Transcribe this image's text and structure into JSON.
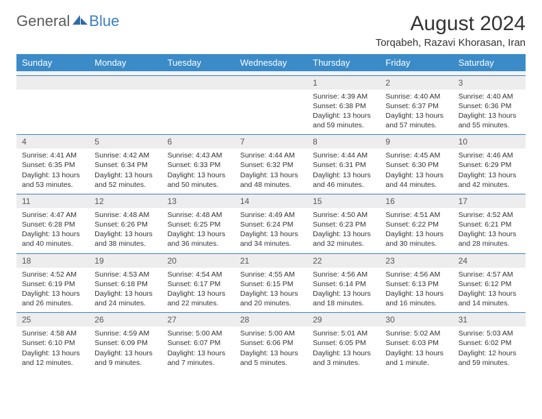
{
  "logo": {
    "general": "General",
    "blue": "Blue"
  },
  "title": "August 2024",
  "location": "Torqabeh, Razavi Khorasan, Iran",
  "colors": {
    "header_bg": "#3b8bc9",
    "header_text": "#ffffff",
    "daterow_bg": "#ededed",
    "border": "#3b7fc4",
    "logo_gray": "#5a5a5a",
    "logo_blue": "#3b7fc4"
  },
  "day_headers": [
    "Sunday",
    "Monday",
    "Tuesday",
    "Wednesday",
    "Thursday",
    "Friday",
    "Saturday"
  ],
  "weeks": [
    {
      "dates": [
        "",
        "",
        "",
        "",
        "1",
        "2",
        "3"
      ],
      "info": [
        "",
        "",
        "",
        "",
        "Sunrise: 4:39 AM\nSunset: 6:38 PM\nDaylight: 13 hours and 59 minutes.",
        "Sunrise: 4:40 AM\nSunset: 6:37 PM\nDaylight: 13 hours and 57 minutes.",
        "Sunrise: 4:40 AM\nSunset: 6:36 PM\nDaylight: 13 hours and 55 minutes."
      ]
    },
    {
      "dates": [
        "4",
        "5",
        "6",
        "7",
        "8",
        "9",
        "10"
      ],
      "info": [
        "Sunrise: 4:41 AM\nSunset: 6:35 PM\nDaylight: 13 hours and 53 minutes.",
        "Sunrise: 4:42 AM\nSunset: 6:34 PM\nDaylight: 13 hours and 52 minutes.",
        "Sunrise: 4:43 AM\nSunset: 6:33 PM\nDaylight: 13 hours and 50 minutes.",
        "Sunrise: 4:44 AM\nSunset: 6:32 PM\nDaylight: 13 hours and 48 minutes.",
        "Sunrise: 4:44 AM\nSunset: 6:31 PM\nDaylight: 13 hours and 46 minutes.",
        "Sunrise: 4:45 AM\nSunset: 6:30 PM\nDaylight: 13 hours and 44 minutes.",
        "Sunrise: 4:46 AM\nSunset: 6:29 PM\nDaylight: 13 hours and 42 minutes."
      ]
    },
    {
      "dates": [
        "11",
        "12",
        "13",
        "14",
        "15",
        "16",
        "17"
      ],
      "info": [
        "Sunrise: 4:47 AM\nSunset: 6:28 PM\nDaylight: 13 hours and 40 minutes.",
        "Sunrise: 4:48 AM\nSunset: 6:26 PM\nDaylight: 13 hours and 38 minutes.",
        "Sunrise: 4:48 AM\nSunset: 6:25 PM\nDaylight: 13 hours and 36 minutes.",
        "Sunrise: 4:49 AM\nSunset: 6:24 PM\nDaylight: 13 hours and 34 minutes.",
        "Sunrise: 4:50 AM\nSunset: 6:23 PM\nDaylight: 13 hours and 32 minutes.",
        "Sunrise: 4:51 AM\nSunset: 6:22 PM\nDaylight: 13 hours and 30 minutes.",
        "Sunrise: 4:52 AM\nSunset: 6:21 PM\nDaylight: 13 hours and 28 minutes."
      ]
    },
    {
      "dates": [
        "18",
        "19",
        "20",
        "21",
        "22",
        "23",
        "24"
      ],
      "info": [
        "Sunrise: 4:52 AM\nSunset: 6:19 PM\nDaylight: 13 hours and 26 minutes.",
        "Sunrise: 4:53 AM\nSunset: 6:18 PM\nDaylight: 13 hours and 24 minutes.",
        "Sunrise: 4:54 AM\nSunset: 6:17 PM\nDaylight: 13 hours and 22 minutes.",
        "Sunrise: 4:55 AM\nSunset: 6:15 PM\nDaylight: 13 hours and 20 minutes.",
        "Sunrise: 4:56 AM\nSunset: 6:14 PM\nDaylight: 13 hours and 18 minutes.",
        "Sunrise: 4:56 AM\nSunset: 6:13 PM\nDaylight: 13 hours and 16 minutes.",
        "Sunrise: 4:57 AM\nSunset: 6:12 PM\nDaylight: 13 hours and 14 minutes."
      ]
    },
    {
      "dates": [
        "25",
        "26",
        "27",
        "28",
        "29",
        "30",
        "31"
      ],
      "info": [
        "Sunrise: 4:58 AM\nSunset: 6:10 PM\nDaylight: 13 hours and 12 minutes.",
        "Sunrise: 4:59 AM\nSunset: 6:09 PM\nDaylight: 13 hours and 9 minutes.",
        "Sunrise: 5:00 AM\nSunset: 6:07 PM\nDaylight: 13 hours and 7 minutes.",
        "Sunrise: 5:00 AM\nSunset: 6:06 PM\nDaylight: 13 hours and 5 minutes.",
        "Sunrise: 5:01 AM\nSunset: 6:05 PM\nDaylight: 13 hours and 3 minutes.",
        "Sunrise: 5:02 AM\nSunset: 6:03 PM\nDaylight: 13 hours and 1 minute.",
        "Sunrise: 5:03 AM\nSunset: 6:02 PM\nDaylight: 12 hours and 59 minutes."
      ]
    }
  ]
}
